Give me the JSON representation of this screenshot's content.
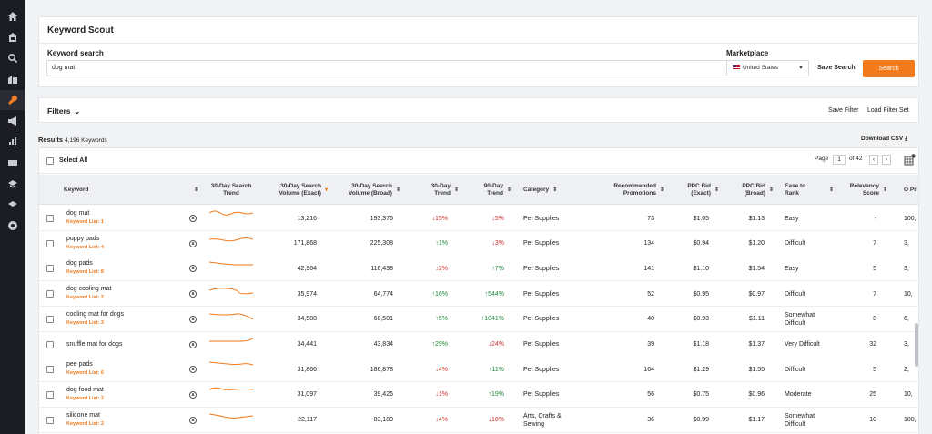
{
  "sidebar": {
    "icons": [
      "home-icon",
      "inventory-icon",
      "search-icon",
      "buildings-icon",
      "keyword-tool-icon",
      "megaphone-icon",
      "bar-chart-icon",
      "ads-icon",
      "graduation-icon",
      "academy-icon",
      "logo-icon"
    ]
  },
  "header": {
    "title": "Keyword Scout",
    "keyword_search_label": "Keyword search",
    "keyword_value": "dog mat",
    "marketplace_label": "Marketplace",
    "marketplace_value": "United States",
    "save_search": "Save Search",
    "search_button": "Search"
  },
  "filters": {
    "label": "Filters",
    "save_filter": "Save Filter",
    "load_filter_set": "Load Filter Set"
  },
  "results": {
    "label": "Results",
    "count": "4,196 Keywords",
    "download": "Download CSV"
  },
  "table": {
    "select_all": "Select All",
    "page_label": "Page",
    "page_value": "1",
    "of_pages": "of 42",
    "headers": {
      "keyword": "Keyword",
      "trend": "30-Day Search Trend",
      "volume_exact": "30-Day Search Volume (Exact)",
      "volume_broad": "30-Day Search Volume (Broad)",
      "trend30": "30-Day Trend",
      "trend90": "90-Day Trend",
      "category": "Category",
      "promotions": "Recommended Promotions",
      "ppc_exact": "PPC Bid (Exact)",
      "ppc_broad": "PPC Bid (Broad)",
      "ease": "Ease to Rank",
      "relevancy": "Relevancy Score",
      "overflow": "O Pr"
    },
    "rows": [
      {
        "keyword": "dog mat",
        "list": "Keyword List: 1",
        "exact": "13,216",
        "broad": "193,376",
        "t30": "15%",
        "t30dir": "down",
        "t90": "5%",
        "t90dir": "down",
        "category": "Pet Supplies",
        "promos": "73",
        "ppc_exact": "$1.05",
        "ppc_broad": "$1.13",
        "ease": "Easy",
        "relevancy": "-",
        "overflow": "100,"
      },
      {
        "keyword": "puppy pads",
        "list": "Keyword List: 4",
        "exact": "171,868",
        "broad": "225,308",
        "t30": "1%",
        "t30dir": "up",
        "t90": "3%",
        "t90dir": "down",
        "category": "Pet Supplies",
        "promos": "134",
        "ppc_exact": "$0.94",
        "ppc_broad": "$1.20",
        "ease": "Difficult",
        "relevancy": "7",
        "overflow": "3,"
      },
      {
        "keyword": "dog pads",
        "list": "Keyword List: 8",
        "exact": "42,964",
        "broad": "116,438",
        "t30": "2%",
        "t30dir": "down",
        "t90": "7%",
        "t90dir": "up",
        "category": "Pet Supplies",
        "promos": "141",
        "ppc_exact": "$1.10",
        "ppc_broad": "$1.54",
        "ease": "Easy",
        "relevancy": "5",
        "overflow": "3,"
      },
      {
        "keyword": "dog cooling mat",
        "list": "Keyword List: 2",
        "exact": "35,974",
        "broad": "64,774",
        "t30": "16%",
        "t30dir": "up",
        "t90": "544%",
        "t90dir": "up",
        "category": "Pet Supplies",
        "promos": "52",
        "ppc_exact": "$0.95",
        "ppc_broad": "$0.97",
        "ease": "Difficult",
        "relevancy": "7",
        "overflow": "10,"
      },
      {
        "keyword": "cooling mat for dogs",
        "list": "Keyword List: 3",
        "exact": "34,588",
        "broad": "68,501",
        "t30": "5%",
        "t30dir": "up",
        "t90": "1041%",
        "t90dir": "up",
        "category": "Pet Supplies",
        "promos": "40",
        "ppc_exact": "$0.93",
        "ppc_broad": "$1.11",
        "ease": "Somewhat Difficult",
        "relevancy": "8",
        "overflow": "6,"
      },
      {
        "keyword": "snuffle mat for dogs",
        "list": "",
        "exact": "34,441",
        "broad": "43,834",
        "t30": "29%",
        "t30dir": "up",
        "t90": "24%",
        "t90dir": "down",
        "category": "Pet Supplies",
        "promos": "39",
        "ppc_exact": "$1.18",
        "ppc_broad": "$1.37",
        "ease": "Very Difficult",
        "relevancy": "32",
        "overflow": "3,"
      },
      {
        "keyword": "pee pads",
        "list": "Keyword List: 6",
        "exact": "31,866",
        "broad": "186,878",
        "t30": "4%",
        "t30dir": "down",
        "t90": "11%",
        "t90dir": "up",
        "category": "Pet Supplies",
        "promos": "164",
        "ppc_exact": "$1.29",
        "ppc_broad": "$1.55",
        "ease": "Difficult",
        "relevancy": "5",
        "overflow": "2,"
      },
      {
        "keyword": "dog food mat",
        "list": "Keyword List: 2",
        "exact": "31,097",
        "broad": "39,426",
        "t30": "1%",
        "t30dir": "down",
        "t90": "19%",
        "t90dir": "up",
        "category": "Pet Supplies",
        "promos": "56",
        "ppc_exact": "$0.75",
        "ppc_broad": "$0.96",
        "ease": "Moderate",
        "relevancy": "25",
        "overflow": "10,"
      },
      {
        "keyword": "silicone mat",
        "list": "Keyword List: 2",
        "exact": "22,117",
        "broad": "83,180",
        "t30": "4%",
        "t30dir": "down",
        "t90": "18%",
        "t90dir": "down",
        "category": "Arts, Crafts & Sewing",
        "promos": "36",
        "ppc_exact": "$0.99",
        "ppc_broad": "$1.17",
        "ease": "Somewhat Difficult",
        "relevancy": "10",
        "overflow": "100,"
      }
    ]
  },
  "colors": {
    "accent": "#f27a1a",
    "up": "#1e8a3a",
    "down": "#d0312d",
    "sidebar": "#1c1d22"
  }
}
